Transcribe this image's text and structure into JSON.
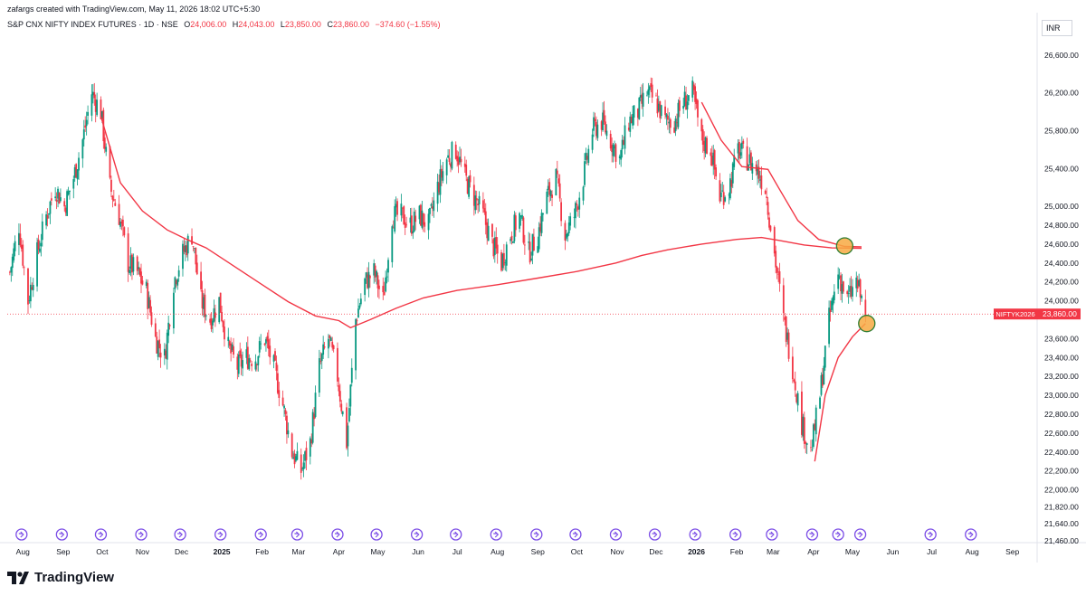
{
  "header": {
    "attribution": "zafargs created with TradingView.com, May 11, 2026 18:02 UTC+5:30"
  },
  "legend": {
    "symbol": "S&P CNX NIFTY INDEX FUTURES · 1D · NSE",
    "open_label": "O",
    "open": "24,006.00",
    "high_label": "H",
    "high": "24,043.00",
    "low_label": "L",
    "low": "23,850.00",
    "close_label": "C",
    "close": "23,860.00",
    "change": "−374.60 (−1.55%)"
  },
  "currency": "INR",
  "brand": {
    "name": "TradingView"
  },
  "colors": {
    "up": "#089981",
    "down": "#f23645",
    "ma": "#f23645",
    "marker": "#f7a942",
    "marker_border": "#2e7d32",
    "event": "#7b4de6"
  },
  "chart_data": {
    "type": "candlestick",
    "ylim": [
      21460,
      26800
    ],
    "y_ticks": [
      "26,600.00",
      "26,200.00",
      "25,800.00",
      "25,400.00",
      "25,000.00",
      "24,800.00",
      "24,600.00",
      "24,400.00",
      "24,200.00",
      "24,000.00",
      "23,600.00",
      "23,400.00",
      "23,200.00",
      "23,000.00",
      "22,800.00",
      "22,600.00",
      "22,400.00",
      "22,200.00",
      "22,000.00",
      "21,820.00",
      "21,640.00",
      "21,460.00"
    ],
    "y_tick_values": [
      26600,
      26200,
      25800,
      25400,
      25000,
      24800,
      24600,
      24400,
      24200,
      24000,
      23600,
      23400,
      23200,
      23000,
      22800,
      22600,
      22400,
      22200,
      22000,
      21820,
      21640,
      21460
    ],
    "x_ticks": [
      {
        "label": "Aug",
        "date": "2024-08-01",
        "bold": false
      },
      {
        "label": "Sep",
        "date": "2024-09-01",
        "bold": false
      },
      {
        "label": "Oct",
        "date": "2024-10-01",
        "bold": false
      },
      {
        "label": "Nov",
        "date": "2024-11-01",
        "bold": false
      },
      {
        "label": "Dec",
        "date": "2024-12-01",
        "bold": false
      },
      {
        "label": "2025",
        "date": "2025-01-01",
        "bold": true
      },
      {
        "label": "Feb",
        "date": "2025-02-01",
        "bold": false
      },
      {
        "label": "Mar",
        "date": "2025-03-01",
        "bold": false
      },
      {
        "label": "Apr",
        "date": "2025-04-01",
        "bold": false
      },
      {
        "label": "May",
        "date": "2025-05-01",
        "bold": false
      },
      {
        "label": "Jun",
        "date": "2025-06-01",
        "bold": false
      },
      {
        "label": "Jul",
        "date": "2025-07-01",
        "bold": false
      },
      {
        "label": "Aug",
        "date": "2025-08-01",
        "bold": false
      },
      {
        "label": "Sep",
        "date": "2025-09-01",
        "bold": false
      },
      {
        "label": "Oct",
        "date": "2025-10-01",
        "bold": false
      },
      {
        "label": "Nov",
        "date": "2025-11-01",
        "bold": false
      },
      {
        "label": "Dec",
        "date": "2025-12-01",
        "bold": false
      },
      {
        "label": "2026",
        "date": "2026-01-01",
        "bold": true
      },
      {
        "label": "Feb",
        "date": "2026-02-01",
        "bold": false
      },
      {
        "label": "Mar",
        "date": "2026-03-01",
        "bold": false
      },
      {
        "label": "Apr",
        "date": "2026-04-01",
        "bold": false
      },
      {
        "label": "May",
        "date": "2026-05-01",
        "bold": false
      },
      {
        "label": "Jun",
        "date": "2026-06-01",
        "bold": false
      },
      {
        "label": "Jul",
        "date": "2026-07-01",
        "bold": false
      },
      {
        "label": "Aug",
        "date": "2026-08-01",
        "bold": false
      },
      {
        "label": "Sep",
        "date": "2026-09-01",
        "bold": false
      }
    ],
    "price_path": [
      [
        "2024-07-22",
        24300
      ],
      [
        "2024-07-29",
        24800
      ],
      [
        "2024-08-05",
        24000
      ],
      [
        "2024-08-12",
        24500
      ],
      [
        "2024-08-19",
        24900
      ],
      [
        "2024-08-26",
        25200
      ],
      [
        "2024-09-02",
        25000
      ],
      [
        "2024-09-09",
        25300
      ],
      [
        "2024-09-16",
        25700
      ],
      [
        "2024-09-23",
        26200
      ],
      [
        "2024-09-30",
        26000
      ],
      [
        "2024-10-07",
        25200
      ],
      [
        "2024-10-14",
        24900
      ],
      [
        "2024-10-21",
        24400
      ],
      [
        "2024-10-28",
        24300
      ],
      [
        "2024-11-04",
        24100
      ],
      [
        "2024-11-11",
        23600
      ],
      [
        "2024-11-18",
        23400
      ],
      [
        "2024-11-25",
        24200
      ],
      [
        "2024-12-02",
        24500
      ],
      [
        "2024-12-09",
        24700
      ],
      [
        "2024-12-16",
        24000
      ],
      [
        "2024-12-23",
        23800
      ],
      [
        "2024-12-30",
        24000
      ],
      [
        "2025-01-06",
        23500
      ],
      [
        "2025-01-13",
        23300
      ],
      [
        "2025-01-20",
        23400
      ],
      [
        "2025-01-27",
        23400
      ],
      [
        "2025-02-03",
        23600
      ],
      [
        "2025-02-10",
        23300
      ],
      [
        "2025-02-17",
        22900
      ],
      [
        "2025-02-24",
        22400
      ],
      [
        "2025-03-03",
        22200
      ],
      [
        "2025-03-10",
        22500
      ],
      [
        "2025-03-17",
        23300
      ],
      [
        "2025-03-24",
        23600
      ],
      [
        "2025-03-31",
        23200
      ],
      [
        "2025-04-07",
        22500
      ],
      [
        "2025-04-14",
        23800
      ],
      [
        "2025-04-21",
        24200
      ],
      [
        "2025-04-28",
        24300
      ],
      [
        "2025-05-05",
        24000
      ],
      [
        "2025-05-12",
        24900
      ],
      [
        "2025-05-19",
        24900
      ],
      [
        "2025-05-26",
        24800
      ],
      [
        "2025-06-02",
        24900
      ],
      [
        "2025-06-09",
        24800
      ],
      [
        "2025-06-16",
        25200
      ],
      [
        "2025-06-23",
        25500
      ],
      [
        "2025-06-30",
        25600
      ],
      [
        "2025-07-07",
        25300
      ],
      [
        "2025-07-14",
        25100
      ],
      [
        "2025-07-21",
        24900
      ],
      [
        "2025-07-28",
        24600
      ],
      [
        "2025-08-04",
        24400
      ],
      [
        "2025-08-11",
        24700
      ],
      [
        "2025-08-18",
        24900
      ],
      [
        "2025-08-25",
        24500
      ],
      [
        "2025-09-01",
        24700
      ],
      [
        "2025-09-08",
        25100
      ],
      [
        "2025-09-15",
        25300
      ],
      [
        "2025-09-22",
        24700
      ],
      [
        "2025-09-29",
        24900
      ],
      [
        "2025-10-06",
        25300
      ],
      [
        "2025-10-13",
        25800
      ],
      [
        "2025-10-20",
        25900
      ],
      [
        "2025-10-27",
        25700
      ],
      [
        "2025-11-03",
        25500
      ],
      [
        "2025-11-10",
        25900
      ],
      [
        "2025-11-17",
        26000
      ],
      [
        "2025-11-24",
        26200
      ],
      [
        "2025-12-01",
        26100
      ],
      [
        "2025-12-08",
        25900
      ],
      [
        "2025-12-15",
        25900
      ],
      [
        "2025-12-22",
        26100
      ],
      [
        "2025-12-29",
        26200
      ],
      [
        "2026-01-05",
        25700
      ],
      [
        "2026-01-12",
        25600
      ],
      [
        "2026-01-19",
        25100
      ],
      [
        "2026-01-26",
        25200
      ],
      [
        "2026-02-02",
        25600
      ],
      [
        "2026-02-09",
        25500
      ],
      [
        "2026-02-16",
        25400
      ],
      [
        "2026-02-23",
        25200
      ],
      [
        "2026-03-02",
        24500
      ],
      [
        "2026-03-09",
        23800
      ],
      [
        "2026-03-16",
        23300
      ],
      [
        "2026-03-23",
        22700
      ],
      [
        "2026-03-30",
        22400
      ],
      [
        "2026-04-06",
        23000
      ],
      [
        "2026-04-13",
        23800
      ],
      [
        "2026-04-20",
        24300
      ],
      [
        "2026-04-27",
        24000
      ],
      [
        "2026-05-04",
        24200
      ],
      [
        "2026-05-11",
        23860
      ]
    ],
    "ma_path": [
      [
        "2024-09-30",
        25950
      ],
      [
        "2024-10-15",
        25250
      ],
      [
        "2024-11-01",
        24950
      ],
      [
        "2024-11-20",
        24750
      ],
      [
        "2024-12-05",
        24650
      ],
      [
        "2024-12-20",
        24560
      ],
      [
        "2025-01-10",
        24370
      ],
      [
        "2025-01-31",
        24180
      ],
      [
        "2025-02-21",
        23990
      ],
      [
        "2025-03-14",
        23840
      ],
      [
        "2025-04-01",
        23790
      ],
      [
        "2025-04-10",
        23715
      ],
      [
        "2025-04-25",
        23800
      ],
      [
        "2025-05-15",
        23920
      ],
      [
        "2025-06-05",
        24030
      ],
      [
        "2025-07-01",
        24110
      ],
      [
        "2025-08-01",
        24170
      ],
      [
        "2025-09-01",
        24240
      ],
      [
        "2025-10-01",
        24310
      ],
      [
        "2025-10-31",
        24400
      ],
      [
        "2025-11-20",
        24480
      ],
      [
        "2025-12-10",
        24540
      ],
      [
        "2026-01-05",
        24600
      ],
      [
        "2026-02-01",
        24650
      ],
      [
        "2026-02-20",
        24670
      ],
      [
        "2026-03-05",
        24640
      ],
      [
        "2026-03-25",
        24590
      ],
      [
        "2026-04-15",
        24560
      ],
      [
        "2026-05-08",
        24555
      ]
    ],
    "ma2_path": [
      [
        "2026-01-05",
        26100
      ],
      [
        "2026-01-20",
        25700
      ],
      [
        "2026-02-05",
        25420
      ],
      [
        "2026-02-25",
        25390
      ],
      [
        "2026-03-05",
        25200
      ],
      [
        "2026-03-20",
        24850
      ],
      [
        "2026-04-05",
        24650
      ],
      [
        "2026-04-25",
        24575
      ],
      [
        "2026-05-08",
        24570
      ]
    ],
    "ma3_path": [
      [
        "2026-04-02",
        22300
      ],
      [
        "2026-04-10",
        23000
      ],
      [
        "2026-04-20",
        23400
      ],
      [
        "2026-05-01",
        23620
      ],
      [
        "2026-05-11",
        23760
      ]
    ],
    "last_price": 23860,
    "last_price_label": "23,860.00",
    "last_price_symbol": "NIFTYK2026",
    "markers": [
      {
        "date": "2026-04-25",
        "price": 24580
      },
      {
        "date": "2026-05-12",
        "price": 23760
      }
    ],
    "event_dates": [
      "2024-07-31",
      "2024-08-31",
      "2024-09-30",
      "2024-10-31",
      "2024-11-30",
      "2024-12-31",
      "2025-01-31",
      "2025-02-28",
      "2025-03-31",
      "2025-04-30",
      "2025-05-31",
      "2025-06-30",
      "2025-07-31",
      "2025-08-31",
      "2025-09-30",
      "2025-10-31",
      "2025-11-30",
      "2025-12-31",
      "2026-01-31",
      "2026-02-28",
      "2026-03-31",
      "2026-04-20",
      "2026-05-07",
      "2026-06-30",
      "2026-07-31"
    ],
    "grid": false
  }
}
